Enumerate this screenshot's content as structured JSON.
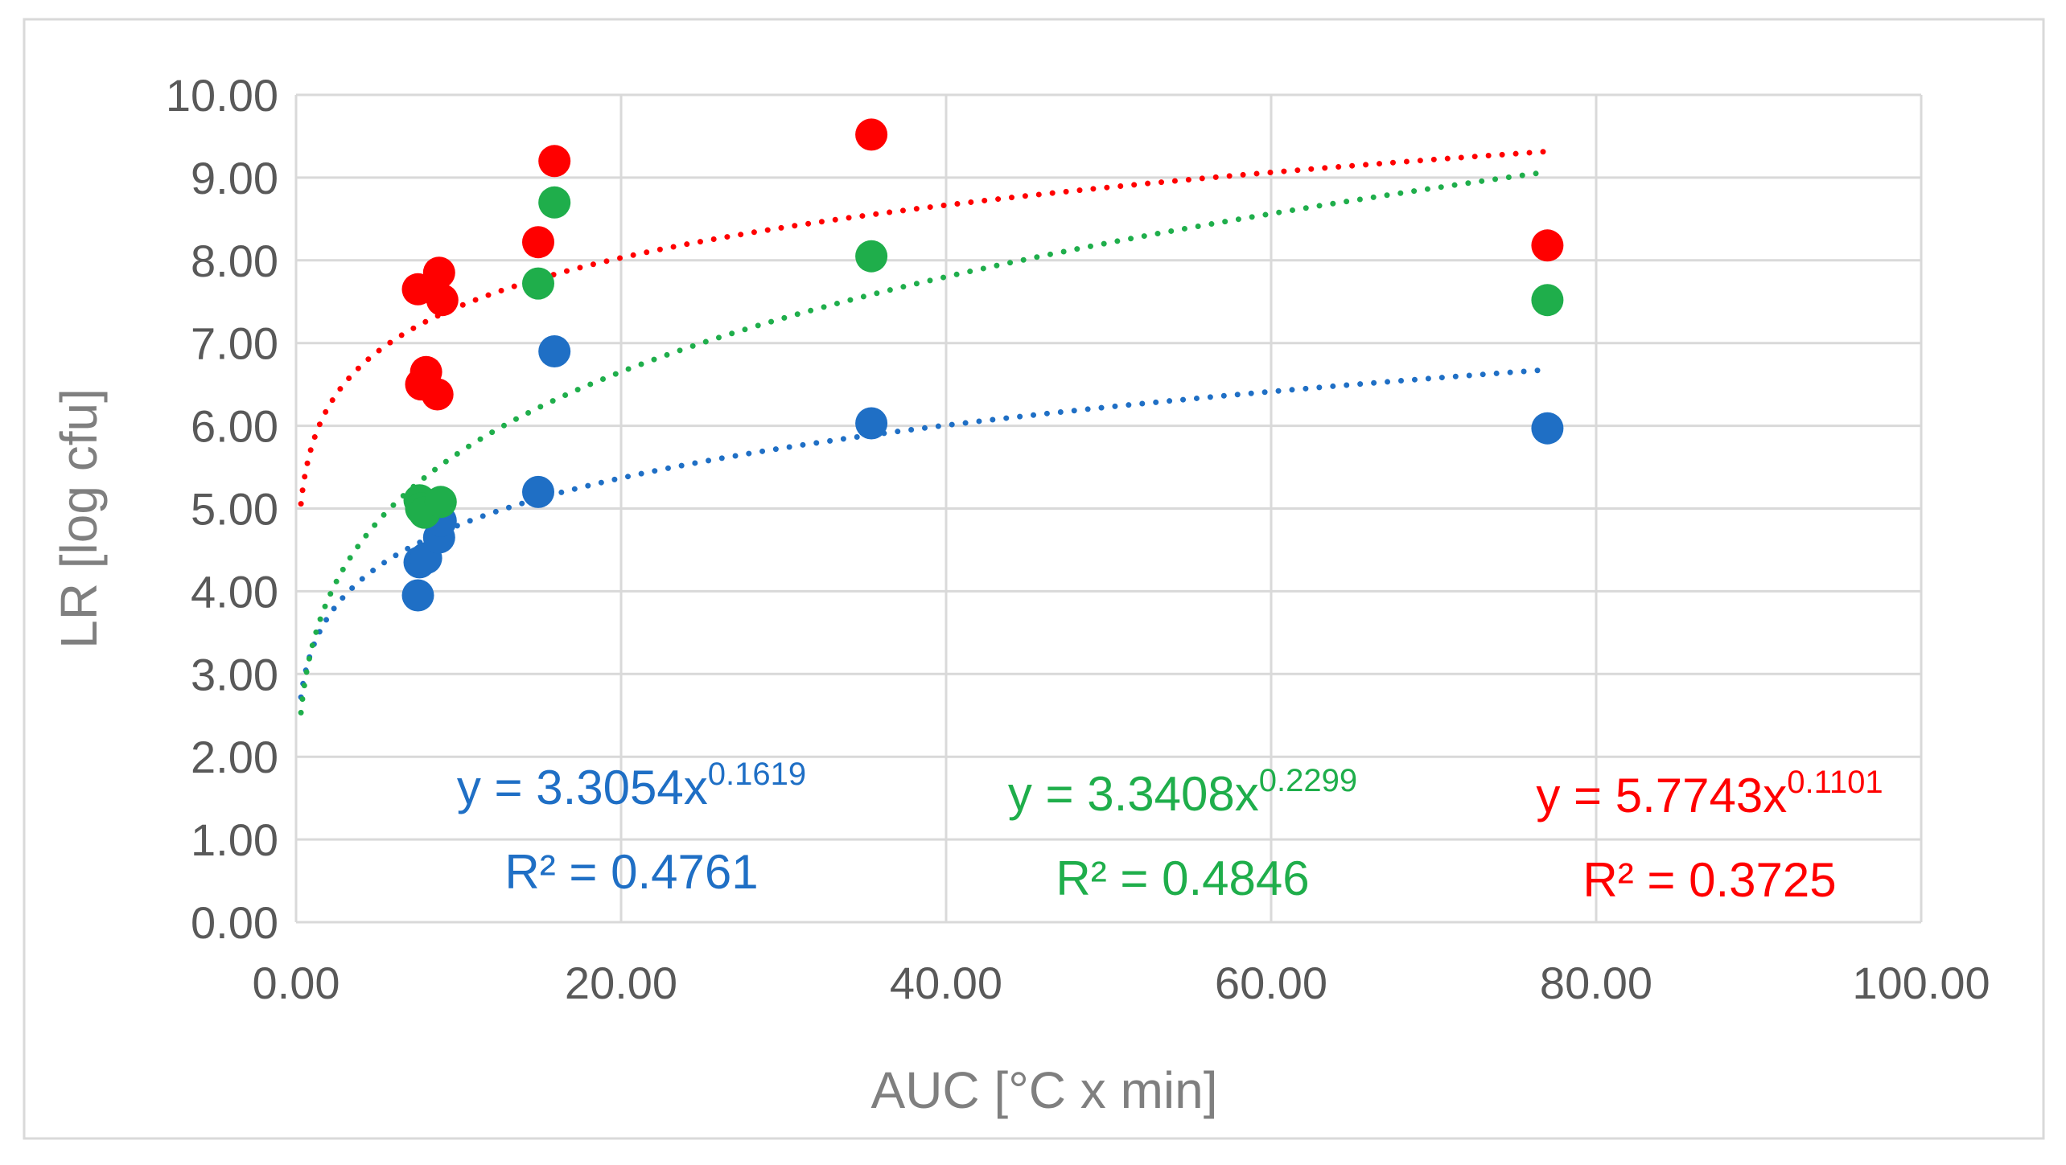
{
  "chart_data": {
    "type": "scatter",
    "title": "",
    "xlabel": "AUC [°C x min]",
    "ylabel": "LR [log cfu]",
    "xlim": [
      0,
      100
    ],
    "ylim": [
      0,
      10
    ],
    "x_ticks": [
      "0.00",
      "20.00",
      "40.00",
      "60.00",
      "80.00",
      "100.00"
    ],
    "y_ticks": [
      "0.00",
      "1.00",
      "2.00",
      "3.00",
      "4.00",
      "5.00",
      "6.00",
      "7.00",
      "8.00",
      "9.00",
      "10.00"
    ],
    "grid": true,
    "legend": "none",
    "series": [
      {
        "name": "blue",
        "color": "#1f6fc5",
        "points": [
          [
            7.5,
            3.95
          ],
          [
            7.6,
            4.35
          ],
          [
            8.0,
            4.4
          ],
          [
            8.8,
            4.65
          ],
          [
            8.9,
            4.85
          ],
          [
            14.9,
            5.2
          ],
          [
            15.9,
            6.9
          ],
          [
            35.4,
            6.03
          ],
          [
            77.0,
            5.97
          ]
        ],
        "trend": {
          "a": 3.3054,
          "b": 0.1619,
          "x_range": [
            0.3,
            77.0
          ]
        },
        "equation_base": "y = 3.3054x",
        "equation_exp": "0.1619",
        "r2_label": "R² = 0.4761"
      },
      {
        "name": "green",
        "color": "#1fae4b",
        "points": [
          [
            7.6,
            5.1
          ],
          [
            7.7,
            5.0
          ],
          [
            7.9,
            4.95
          ],
          [
            8.9,
            5.08
          ],
          [
            14.9,
            7.72
          ],
          [
            15.9,
            8.7
          ],
          [
            35.4,
            8.05
          ],
          [
            77.0,
            7.52
          ]
        ],
        "trend": {
          "a": 3.3408,
          "b": 0.2299,
          "x_range": [
            0.3,
            77.0
          ]
        },
        "equation_base": "y = 3.3408x",
        "equation_exp": "0.2299",
        "r2_label": "R² = 0.4846"
      },
      {
        "name": "red",
        "color": "#ff0000",
        "points": [
          [
            7.5,
            7.65
          ],
          [
            7.7,
            6.5
          ],
          [
            8.0,
            6.65
          ],
          [
            8.7,
            6.38
          ],
          [
            8.8,
            7.85
          ],
          [
            9.0,
            7.52
          ],
          [
            14.9,
            8.22
          ],
          [
            15.9,
            9.2
          ],
          [
            35.4,
            9.52
          ],
          [
            77.0,
            8.18
          ]
        ],
        "trend": {
          "a": 5.7743,
          "b": 0.1101,
          "x_range": [
            0.3,
            77.0
          ]
        },
        "equation_base": "y = 5.7743x",
        "equation_exp": "0.1101",
        "r2_label": "R² = 0.3725"
      }
    ]
  }
}
